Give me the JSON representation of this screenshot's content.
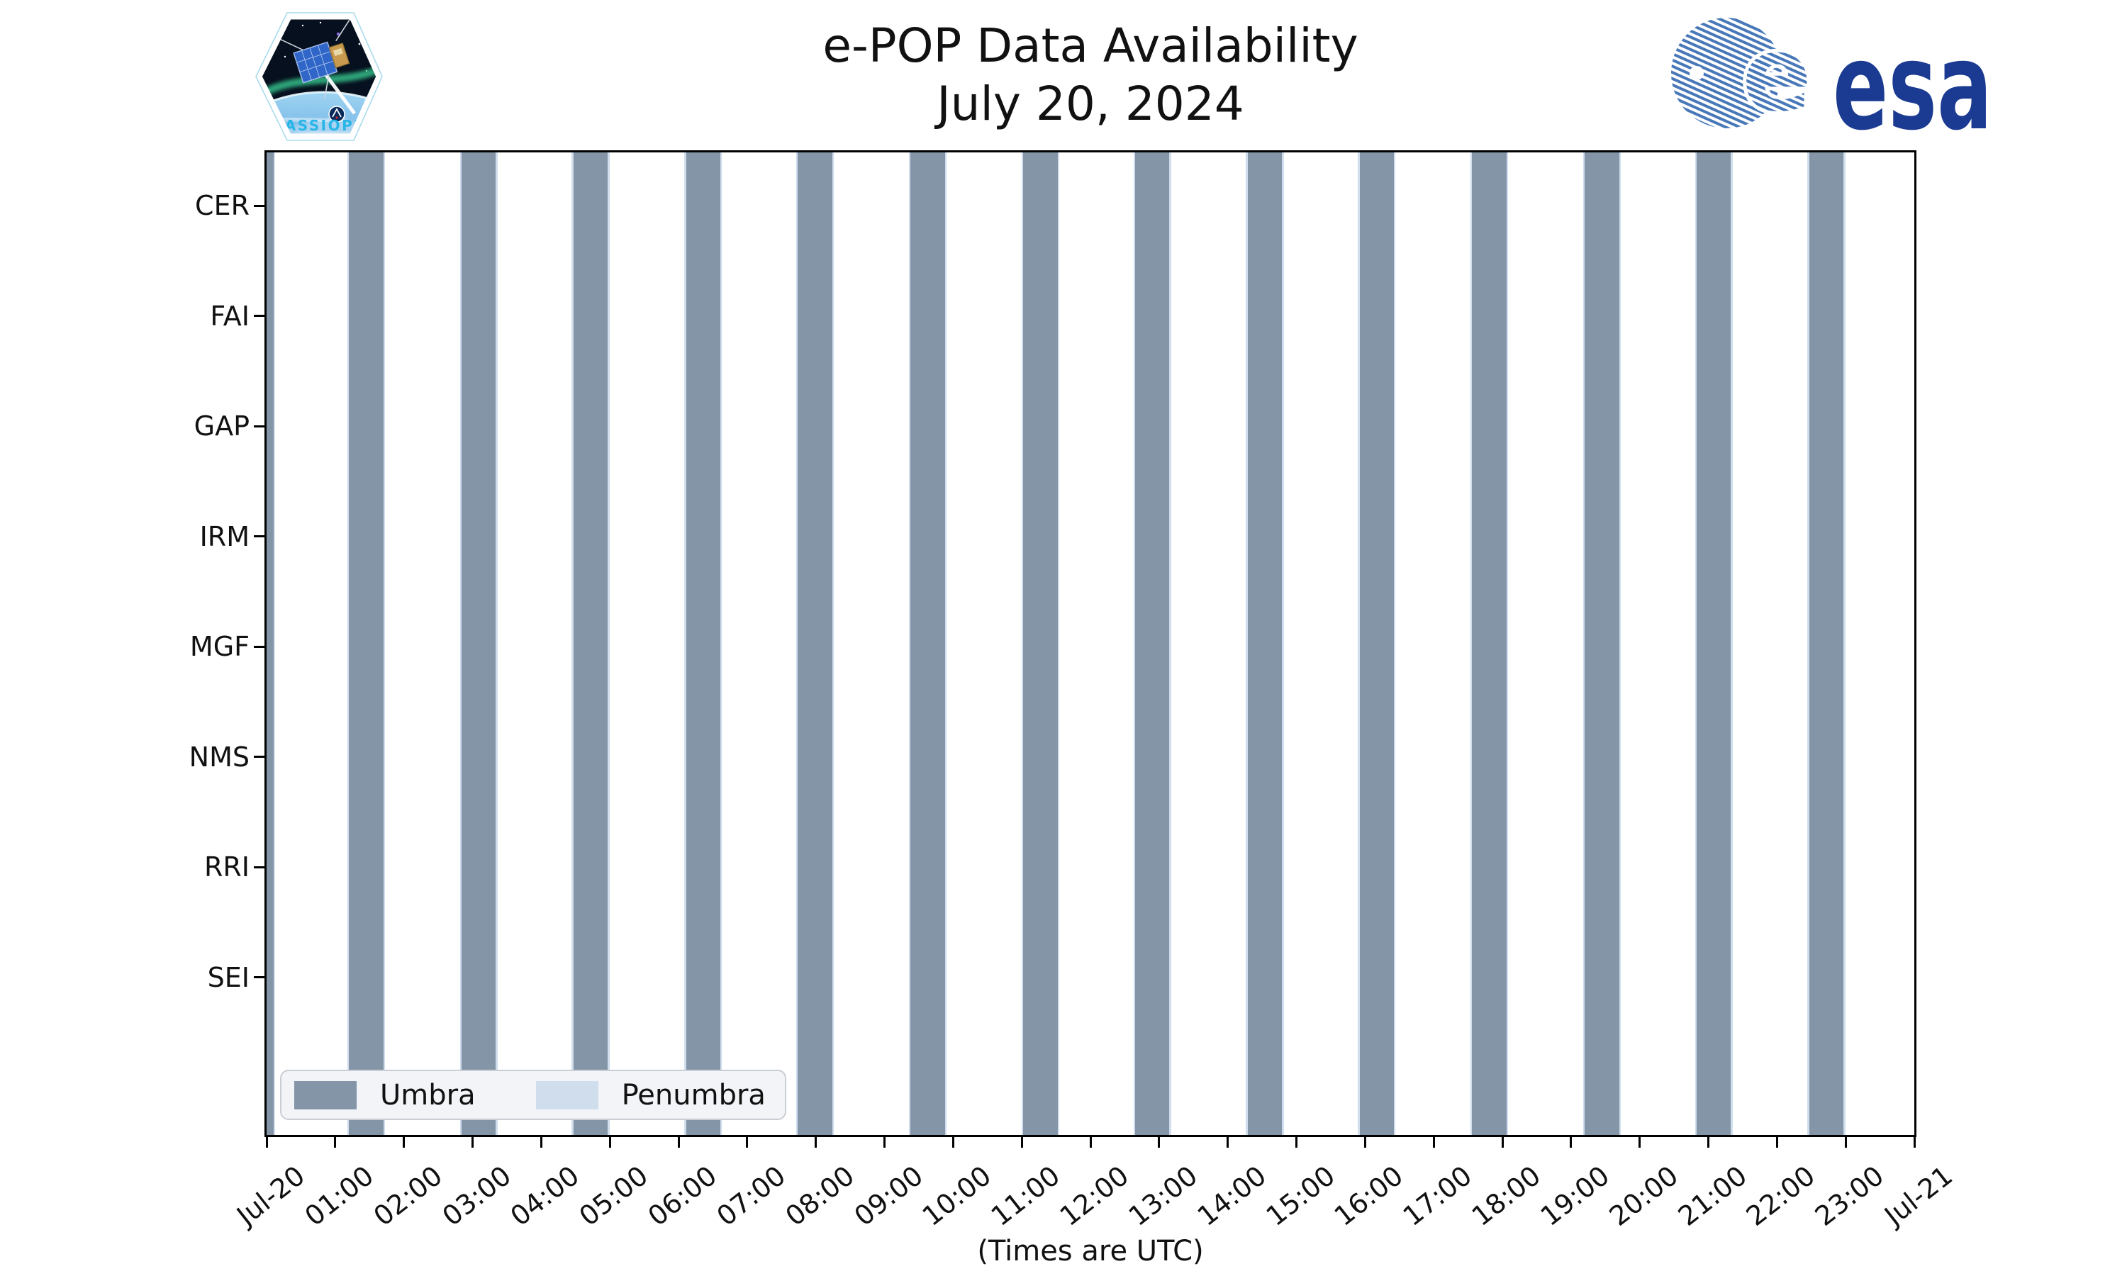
{
  "header": {
    "title": "e-POP Data Availability",
    "subtitle": "July 20, 2024"
  },
  "logos": {
    "cassiope": {
      "label": "CASSIOPE"
    },
    "esa": {
      "globe_letter": "e",
      "wordmark": "esa",
      "navy": "#1b3a91",
      "stripe_blue": "#4878b8"
    }
  },
  "chart_data": {
    "type": "bar",
    "variant": "availability-timeline",
    "title": "e-POP Data Availability",
    "subtitle": "July 20, 2024",
    "xlabel": "(Times are UTC)",
    "x_axis_hours": [
      0,
      24
    ],
    "x_tick_labels": [
      "Jul-20",
      "01:00",
      "02:00",
      "03:00",
      "04:00",
      "05:00",
      "06:00",
      "07:00",
      "08:00",
      "09:00",
      "10:00",
      "11:00",
      "12:00",
      "13:00",
      "14:00",
      "15:00",
      "16:00",
      "17:00",
      "18:00",
      "19:00",
      "20:00",
      "21:00",
      "22:00",
      "23:00",
      "Jul-21"
    ],
    "instruments": [
      "CER",
      "FAI",
      "GAP",
      "IRM",
      "MGF",
      "NMS",
      "RRI",
      "SEI"
    ],
    "umbra_intervals_hours": [
      [
        0.0,
        0.1
      ],
      [
        1.2,
        1.7
      ],
      [
        2.84,
        3.34
      ],
      [
        4.47,
        4.97
      ],
      [
        6.11,
        6.61
      ],
      [
        7.74,
        8.24
      ],
      [
        9.38,
        9.88
      ],
      [
        11.02,
        11.52
      ],
      [
        12.65,
        13.15
      ],
      [
        14.29,
        14.79
      ],
      [
        15.92,
        16.42
      ],
      [
        17.56,
        18.06
      ],
      [
        19.2,
        19.7
      ],
      [
        20.83,
        21.33
      ],
      [
        22.47,
        22.97
      ]
    ],
    "penumbra_margin_hours": 0.025,
    "legend": [
      {
        "label": "Umbra",
        "color": "#8495a7"
      },
      {
        "label": "Penumbra",
        "color": "#cfdded"
      }
    ],
    "legend_position": "lower-left",
    "grid": false,
    "bars_span": "full-height",
    "colors": {
      "umbra": "#8495a7",
      "penumbra": "#cfdded",
      "axis": "#000000",
      "legend_bg": "#f2f4f8",
      "legend_border": "#c9cdd4"
    }
  }
}
